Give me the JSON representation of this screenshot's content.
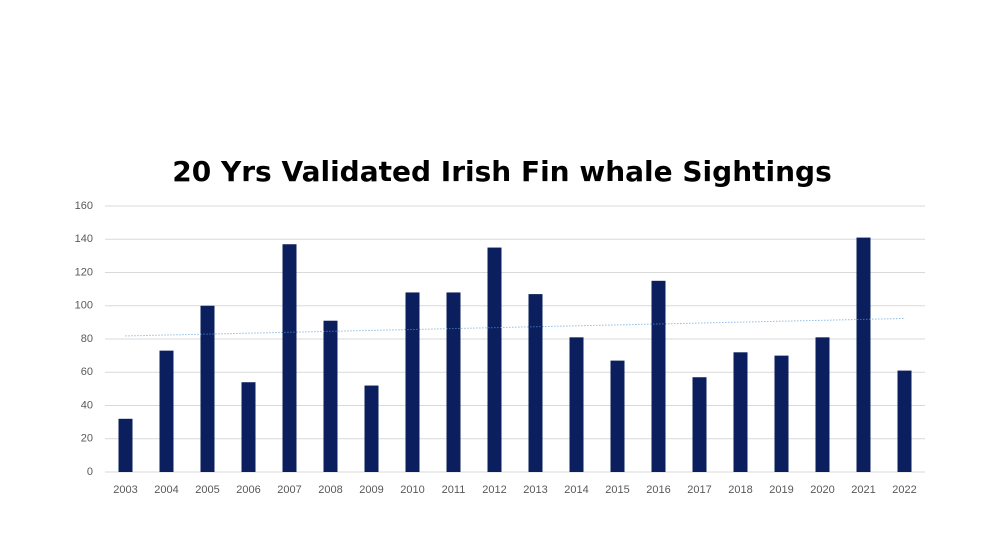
{
  "chart_data": {
    "type": "bar",
    "title": "20 Yrs Validated Irish Fin whale Sightings",
    "categories": [
      "2003",
      "2004",
      "2005",
      "2006",
      "2007",
      "2008",
      "2009",
      "2010",
      "2011",
      "2012",
      "2013",
      "2014",
      "2015",
      "2016",
      "2017",
      "2018",
      "2019",
      "2020",
      "2021",
      "2022"
    ],
    "values": [
      32,
      73,
      100,
      54,
      137,
      91,
      52,
      108,
      108,
      135,
      107,
      81,
      67,
      115,
      57,
      72,
      70,
      81,
      141,
      61
    ],
    "color": "#0b1f5e",
    "ylim": [
      0,
      160
    ],
    "yticks": [
      0,
      20,
      40,
      60,
      80,
      100,
      120,
      140,
      160
    ],
    "grid": true,
    "trendline": {
      "type": "linear",
      "color": "#5b9bd5"
    }
  }
}
